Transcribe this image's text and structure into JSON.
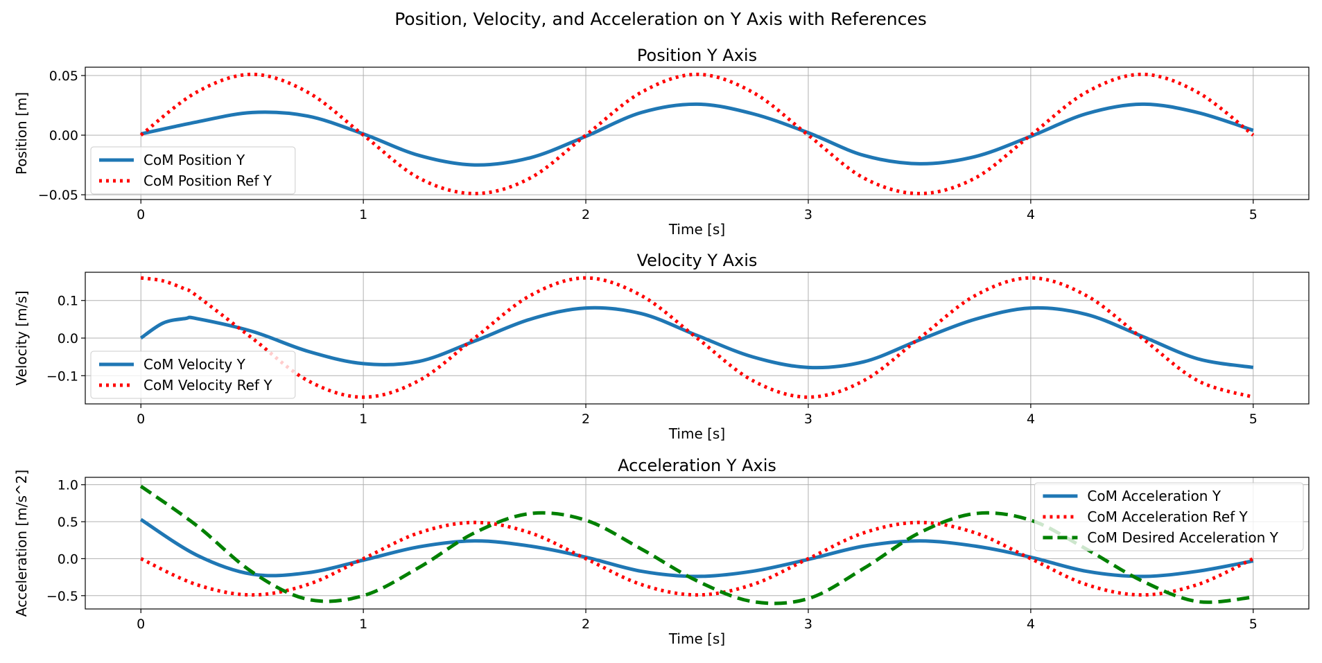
{
  "figure": {
    "suptitle": "Position, Velocity, and Acceleration on Y Axis with References",
    "background": "#ffffff"
  },
  "chart_data": [
    {
      "type": "line",
      "title": "Position Y Axis",
      "xlabel": "Time [s]",
      "ylabel": "Position [m]",
      "xlim": [
        -0.25,
        5.25
      ],
      "ylim": [
        -0.054,
        0.057
      ],
      "xticks": [
        0,
        1,
        2,
        3,
        4,
        5
      ],
      "xtick_labels": [
        "0",
        "1",
        "2",
        "3",
        "4",
        "5"
      ],
      "yticks": [
        -0.05,
        0.0,
        0.05
      ],
      "ytick_labels": [
        "−0.05",
        "0.00",
        "0.05"
      ],
      "grid": true,
      "legend_position": "lower-left",
      "x": [
        0,
        0.25,
        0.5,
        0.75,
        1.0,
        1.25,
        1.5,
        1.75,
        2.0,
        2.25,
        2.5,
        2.75,
        3.0,
        3.25,
        3.5,
        3.75,
        4.0,
        4.25,
        4.5,
        4.75,
        5.0
      ],
      "series": [
        {
          "name": "CoM Position Y",
          "color": "#1f77b4",
          "style": "solid",
          "values": [
            0.001,
            0.011,
            0.019,
            0.016,
            0.001,
            -0.017,
            -0.025,
            -0.019,
            -0.001,
            0.019,
            0.026,
            0.018,
            0.002,
            -0.017,
            -0.024,
            -0.018,
            -0.001,
            0.018,
            0.026,
            0.019,
            0.004
          ]
        },
        {
          "name": "CoM Position Ref Y",
          "color": "#ff0000",
          "style": "dotted",
          "values": [
            0.0,
            0.036,
            0.051,
            0.036,
            0.0,
            -0.036,
            -0.049,
            -0.036,
            0.0,
            0.036,
            0.051,
            0.036,
            0.0,
            -0.036,
            -0.049,
            -0.036,
            0.0,
            0.036,
            0.051,
            0.036,
            0.0
          ]
        }
      ]
    },
    {
      "type": "line",
      "title": "Velocity Y Axis",
      "xlabel": "Time [s]",
      "ylabel": "Velocity [m/s]",
      "xlim": [
        -0.25,
        5.25
      ],
      "ylim": [
        -0.175,
        0.175
      ],
      "xticks": [
        0,
        1,
        2,
        3,
        4,
        5
      ],
      "xtick_labels": [
        "0",
        "1",
        "2",
        "3",
        "4",
        "5"
      ],
      "yticks": [
        -0.1,
        0.0,
        0.1
      ],
      "ytick_labels": [
        "−0.1",
        "0.0",
        "0.1"
      ],
      "grid": true,
      "legend_position": "lower-left",
      "x": [
        0,
        0.1,
        0.2,
        0.25,
        0.5,
        0.75,
        1.0,
        1.25,
        1.5,
        1.75,
        2.0,
        2.25,
        2.5,
        2.75,
        3.0,
        3.25,
        3.5,
        3.75,
        4.0,
        4.25,
        4.5,
        4.75,
        5.0
      ],
      "series": [
        {
          "name": "CoM Velocity Y",
          "color": "#1f77b4",
          "style": "solid",
          "values": [
            0.0,
            0.04,
            0.052,
            0.052,
            0.018,
            -0.035,
            -0.068,
            -0.062,
            -0.008,
            0.05,
            0.08,
            0.065,
            0.007,
            -0.05,
            -0.078,
            -0.063,
            -0.005,
            0.05,
            0.08,
            0.063,
            0.005,
            -0.055,
            -0.078
          ]
        },
        {
          "name": "CoM Velocity Ref Y",
          "color": "#ff0000",
          "style": "dotted",
          "values": [
            0.16,
            0.152,
            0.13,
            0.113,
            0.0,
            -0.113,
            -0.157,
            -0.113,
            0.0,
            0.113,
            0.16,
            0.113,
            0.0,
            -0.113,
            -0.157,
            -0.113,
            0.0,
            0.113,
            0.16,
            0.113,
            0.0,
            -0.113,
            -0.157
          ]
        }
      ]
    },
    {
      "type": "line",
      "title": "Acceleration Y Axis",
      "xlabel": "Time [s]",
      "ylabel": "Acceleration [m/s^2]",
      "xlim": [
        -0.25,
        5.25
      ],
      "ylim": [
        -0.68,
        1.1
      ],
      "xticks": [
        0,
        1,
        2,
        3,
        4,
        5
      ],
      "xtick_labels": [
        "0",
        "1",
        "2",
        "3",
        "4",
        "5"
      ],
      "yticks": [
        -0.5,
        0.0,
        0.5,
        1.0
      ],
      "ytick_labels": [
        "−0.5",
        "0.0",
        "0.5",
        "1.0"
      ],
      "grid": true,
      "legend_position": "upper-right",
      "x": [
        0,
        0.25,
        0.5,
        0.75,
        1.0,
        1.25,
        1.5,
        1.75,
        2.0,
        2.25,
        2.5,
        2.75,
        3.0,
        3.25,
        3.5,
        3.75,
        4.0,
        4.25,
        4.5,
        4.75,
        5.0
      ],
      "series": [
        {
          "name": "CoM Acceleration Y",
          "color": "#1f77b4",
          "style": "solid",
          "values": [
            0.53,
            0.05,
            -0.21,
            -0.19,
            -0.02,
            0.16,
            0.24,
            0.17,
            0.02,
            -0.17,
            -0.24,
            -0.17,
            -0.01,
            0.17,
            0.24,
            0.17,
            0.02,
            -0.17,
            -0.24,
            -0.17,
            -0.03
          ]
        },
        {
          "name": "CoM Acceleration Ref Y",
          "color": "#ff0000",
          "style": "dotted",
          "values": [
            0.0,
            -0.35,
            -0.49,
            -0.35,
            0.0,
            0.35,
            0.49,
            0.35,
            0.0,
            -0.35,
            -0.49,
            -0.35,
            0.0,
            0.35,
            0.49,
            0.35,
            0.0,
            -0.35,
            -0.49,
            -0.35,
            0.0
          ]
        },
        {
          "name": "CoM Desired Acceleration Y",
          "color": "#008000",
          "style": "dashed",
          "values": [
            0.98,
            0.45,
            -0.18,
            -0.55,
            -0.5,
            -0.12,
            0.35,
            0.61,
            0.52,
            0.13,
            -0.3,
            -0.58,
            -0.54,
            -0.13,
            0.35,
            0.61,
            0.52,
            0.13,
            -0.3,
            -0.58,
            -0.52
          ]
        }
      ]
    }
  ]
}
